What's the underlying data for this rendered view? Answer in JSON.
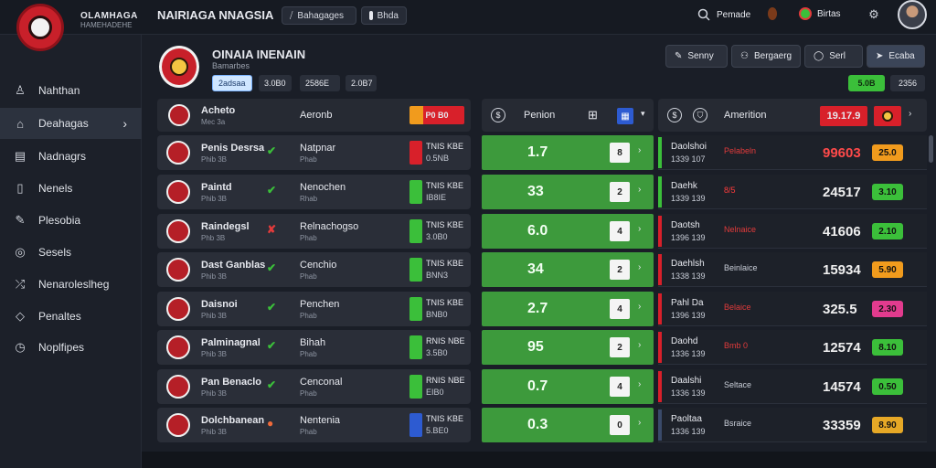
{
  "app": {
    "name": "OLAMHAGA",
    "subtitle": "HAMEHADEHE",
    "page_heading": "NAIRIAGA NNAGSIA"
  },
  "topbar": {
    "btn_a": "Bahagages",
    "btn_b": "Bhda",
    "search": "Pemade",
    "user_item": "Birtas"
  },
  "sidebar": {
    "items": [
      {
        "label": "Nahthan",
        "icon": "person-icon"
      },
      {
        "label": "Deahagas",
        "icon": "folder-icon"
      },
      {
        "label": "Nadnagrs",
        "icon": "grid-icon"
      },
      {
        "label": "Nenels",
        "icon": "document-icon"
      },
      {
        "label": "Plesobia",
        "icon": "pencil-icon"
      },
      {
        "label": "Sesels",
        "icon": "compass-icon"
      },
      {
        "label": "Nenaroleslheg",
        "icon": "share-icon"
      },
      {
        "label": "Penaltes",
        "icon": "diamond-icon"
      },
      {
        "label": "Noplfipes",
        "icon": "clock-icon"
      }
    ]
  },
  "header": {
    "title": "OINAIA INENAIN",
    "subtitle": "Bamarbes",
    "chips": [
      "2adsaa",
      "3.0B0",
      "2586E",
      "2.0B7"
    ],
    "actions": [
      "Senny",
      "Bergaerg",
      "Serl",
      "Ecaba"
    ],
    "pill_green": "5.0B",
    "pill_dark": "2356"
  },
  "colors": {
    "green": "#3d9a3c",
    "red": "#d8202a",
    "orange": "#f19b1d",
    "blue": "#2d5bd1",
    "pink": "#e23b8e",
    "gold": "#e6a826"
  },
  "left_panel": {
    "header": {
      "name": "Acheto",
      "sub": "Mec 3a",
      "opp": "Aeronb",
      "badge": "P0 B0"
    },
    "rows": [
      {
        "name": "Penis Desrsa",
        "sub": "Phib 3B",
        "tick": "✔",
        "tick_color": "#3bbf3a",
        "opp": "Natpnar",
        "opp_sub": "Phab",
        "bar": "#d8202a",
        "s1": "TNIS KBE",
        "s2": "0.5NB"
      },
      {
        "name": "Paintd",
        "sub": "Phib 3B",
        "tick": "✔",
        "tick_color": "#3bbf3a",
        "opp": "Nenochen",
        "opp_sub": "Rhab",
        "bar": "#3bbf3a",
        "s1": "TNIS KBE",
        "s2": "IB8IE"
      },
      {
        "name": "Raindegsl",
        "sub": "Phb 3B",
        "tick": "✘",
        "tick_color": "#e23b3b",
        "opp": "Relnachogso",
        "opp_sub": "Phab",
        "bar": "#3bbf3a",
        "s1": "TNIS KBE",
        "s2": "3.0B0"
      },
      {
        "name": "Dast Ganblas",
        "sub": "Phib 3B",
        "tick": "✔",
        "tick_color": "#3bbf3a",
        "opp": "Cenchio",
        "opp_sub": "Phab",
        "bar": "#3bbf3a",
        "s1": "TNIS KBE",
        "s2": "BNN3"
      },
      {
        "name": "Daisnoi",
        "sub": "Phib 3B",
        "tick": "✔",
        "tick_color": "#3bbf3a",
        "opp": "Penchen",
        "opp_sub": "Phab",
        "bar": "#3bbf3a",
        "s1": "TNIS KBE",
        "s2": "BNB0"
      },
      {
        "name": "Palminagnal",
        "sub": "Phib 3B",
        "tick": "✔",
        "tick_color": "#3bbf3a",
        "opp": "Bihah",
        "opp_sub": "Phab",
        "bar": "#3bbf3a",
        "s1": "RNIS NBE",
        "s2": "3.5B0"
      },
      {
        "name": "Pan Benaclo",
        "sub": "Phib 3B",
        "tick": "✔",
        "tick_color": "#3bbf3a",
        "opp": "Cenconal",
        "opp_sub": "Phab",
        "bar": "#3bbf3a",
        "s1": "RNIS NBE",
        "s2": "EIB0"
      },
      {
        "name": "Dolchbanean",
        "sub": "Phib 3B",
        "tick": "●",
        "tick_color": "#f06a3a",
        "opp": "Nentenia",
        "opp_sub": "Phab",
        "bar": "#2d5bd1",
        "s1": "TNIS KBE",
        "s2": "5.BE0"
      }
    ]
  },
  "mid_panel": {
    "header": "Penion",
    "rows": [
      {
        "score": "1.7",
        "box": "8"
      },
      {
        "score": "33",
        "box": "2"
      },
      {
        "score": "6.0",
        "box": "4"
      },
      {
        "score": "34",
        "box": "2"
      },
      {
        "score": "2.7",
        "box": "4"
      },
      {
        "score": "95",
        "box": "2"
      },
      {
        "score": "0.7",
        "box": "4"
      },
      {
        "score": "0.3",
        "box": "0"
      }
    ]
  },
  "right_panel": {
    "header": {
      "title": "Amerition",
      "badge": "19.17.9"
    },
    "rows": [
      {
        "l1": "Daolshoi",
        "l2": "1339 107",
        "mid": "Pelabeln",
        "mid_color": "#e23b3b",
        "big": "99603",
        "big_color": "#ff4a4a",
        "tag": "25.0",
        "tag_color": "#f19b1d",
        "bar": "#3bbf3a"
      },
      {
        "l1": "Daehk",
        "l2": "1339 139",
        "mid": "8/5",
        "mid_color": "#ff3b3b",
        "big": "24517",
        "big_color": "#f0f0f0",
        "tag": "3.10",
        "tag_color": "#3bbf3a",
        "bar": "#3bbf3a"
      },
      {
        "l1": "Daotsh",
        "l2": "1396 139",
        "mid": "Nelnaice",
        "mid_color": "#e23b3b",
        "big": "41606",
        "big_color": "#f0f0f0",
        "tag": "2.10",
        "tag_color": "#3bbf3a",
        "bar": "#d8202a"
      },
      {
        "l1": "Daehlsh",
        "l2": "1338 139",
        "mid": "Beinlaice",
        "mid_color": "#c9ced8",
        "big": "15934",
        "big_color": "#f0f0f0",
        "tag": "5.90",
        "tag_color": "#f19b1d",
        "bar": "#d8202a"
      },
      {
        "l1": "Pahl Da",
        "l2": "1396 139",
        "mid": "Belaice",
        "mid_color": "#e23b3b",
        "big": "325.5",
        "big_color": "#f0f0f0",
        "tag": "2.30",
        "tag_color": "#e23b8e",
        "bar": "#d8202a"
      },
      {
        "l1": "Daohd",
        "l2": "1336 139",
        "mid": "Bmb 0",
        "mid_color": "#e23b3b",
        "big": "12574",
        "big_color": "#f0f0f0",
        "tag": "8.10",
        "tag_color": "#3bbf3a",
        "bar": "#d8202a"
      },
      {
        "l1": "Daalshi",
        "l2": "1336 139",
        "mid": "Seltace",
        "mid_color": "#c9ced8",
        "big": "14574",
        "big_color": "#f0f0f0",
        "tag": "0.50",
        "tag_color": "#3bbf3a",
        "bar": "#d8202a"
      },
      {
        "l1": "Paoltaa",
        "l2": "1336 139",
        "mid": "Bsraice",
        "mid_color": "#c9ced8",
        "big": "33359",
        "big_color": "#f0f0f0",
        "tag": "8.90",
        "tag_color": "#e6a826",
        "bar": "#3a4a6a"
      }
    ]
  }
}
